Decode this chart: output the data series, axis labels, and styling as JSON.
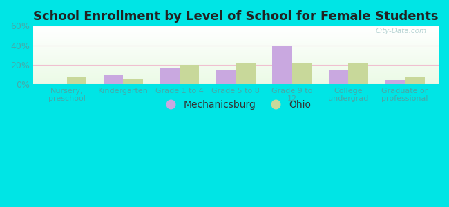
{
  "title": "School Enrollment by Level of School for Female Students",
  "categories": [
    "Nursery,\npreschool",
    "Kindergarten",
    "Grade 1 to 4",
    "Grade 5 to 8",
    "Grade 9 to\n12",
    "College\nundergrad",
    "Graduate or\nprofessional"
  ],
  "mechanicsburg": [
    0,
    9,
    17,
    14,
    39,
    15,
    4
  ],
  "ohio": [
    7,
    5,
    20,
    21,
    21,
    21,
    7
  ],
  "mechanicsburg_color": "#c9a8e0",
  "ohio_color": "#c8d89a",
  "background_color": "#00e5e5",
  "ylim": [
    0,
    60
  ],
  "yticks": [
    0,
    20,
    40,
    60
  ],
  "ytick_labels": [
    "0%",
    "20%",
    "40%",
    "60%"
  ],
  "bar_width": 0.35,
  "legend_labels": [
    "Mechanicsburg",
    "Ohio"
  ],
  "watermark": "City-Data.com",
  "tick_color": "#44aaaa",
  "title_fontsize": 13
}
